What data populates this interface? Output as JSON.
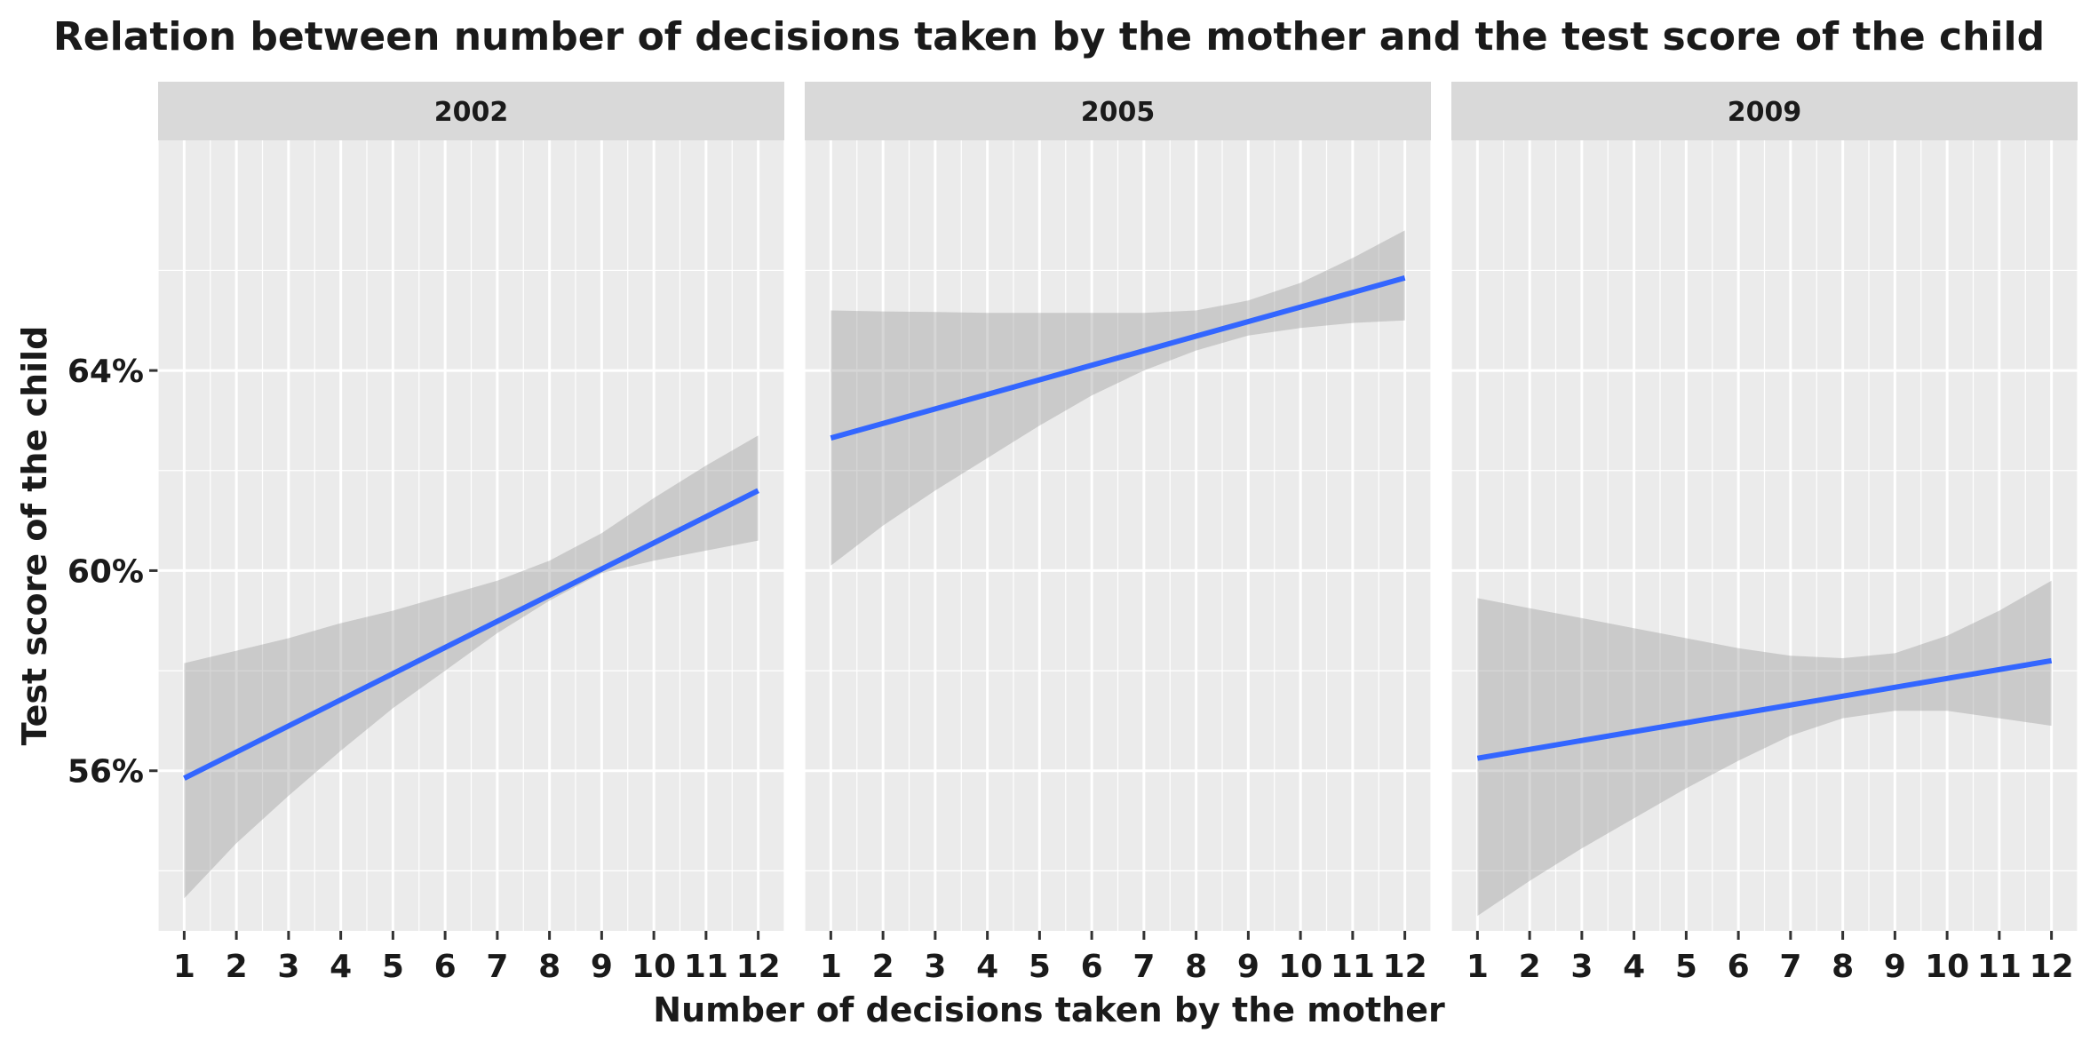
{
  "chart_data": {
    "type": "line",
    "title": "Relation between number of decisions taken by the mother and the test score of the child",
    "xlabel": "Number of decisions taken by the mother",
    "ylabel": "Test score of the child",
    "x_ticks": [
      "1",
      "2",
      "3",
      "4",
      "5",
      "6",
      "7",
      "8",
      "9",
      "10",
      "11",
      "12"
    ],
    "y_ticks": [
      "56%",
      "60%",
      "64%"
    ],
    "y_tick_values": [
      56,
      60,
      64
    ],
    "xlim": [
      0.5,
      12.5
    ],
    "ylim": [
      52.8,
      68.6
    ],
    "grid": true,
    "legend": "none",
    "colors": {
      "line": "#3366ff",
      "ribbon": "#c7c7c7",
      "panel_bg": "#ebebeb",
      "strip_bg": "#d9d9d9",
      "grid": "#ffffff"
    },
    "panels": [
      {
        "label": "2002",
        "x": [
          1,
          12
        ],
        "line": [
          55.85,
          61.6
        ],
        "ribbon_x": [
          1,
          2,
          3,
          4,
          5,
          6,
          7,
          8,
          9,
          10,
          11,
          12
        ],
        "ribbon_lower": [
          53.45,
          54.55,
          55.5,
          56.4,
          57.25,
          58.0,
          58.75,
          59.4,
          59.95,
          60.2,
          60.4,
          60.6
        ],
        "ribbon_upper": [
          58.15,
          58.4,
          58.65,
          58.95,
          59.2,
          59.5,
          59.8,
          60.2,
          60.75,
          61.45,
          62.1,
          62.7
        ]
      },
      {
        "label": "2005",
        "x": [
          1,
          12
        ],
        "line": [
          62.65,
          65.85
        ],
        "ribbon_x": [
          1,
          2,
          3,
          4,
          5,
          6,
          7,
          8,
          9,
          10,
          11,
          12
        ],
        "ribbon_lower": [
          60.1,
          60.9,
          61.6,
          62.25,
          62.9,
          63.5,
          64.0,
          64.4,
          64.7,
          64.85,
          64.95,
          65.0
        ],
        "ribbon_upper": [
          65.2,
          65.18,
          65.17,
          65.15,
          65.15,
          65.15,
          65.15,
          65.2,
          65.4,
          65.75,
          66.25,
          66.8
        ]
      },
      {
        "label": "2009",
        "x": [
          1,
          12
        ],
        "line": [
          56.25,
          58.2
        ],
        "ribbon_x": [
          1,
          2,
          3,
          4,
          5,
          6,
          7,
          8,
          9,
          10,
          11,
          12
        ],
        "ribbon_lower": [
          53.1,
          53.8,
          54.45,
          55.05,
          55.65,
          56.2,
          56.7,
          57.05,
          57.2,
          57.2,
          57.05,
          56.9
        ],
        "ribbon_upper": [
          59.45,
          59.25,
          59.05,
          58.85,
          58.65,
          58.45,
          58.3,
          58.25,
          58.35,
          58.7,
          59.2,
          59.8
        ]
      }
    ]
  }
}
